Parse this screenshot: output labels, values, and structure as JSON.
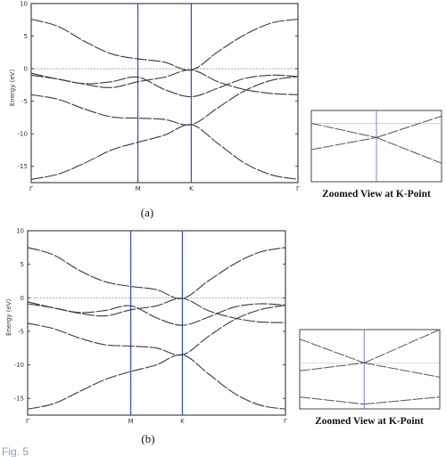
{
  "figure_caption_fragment": "Fig. 5",
  "chart_data": [
    {
      "type": "line",
      "panel_label": "(a)",
      "ylabel": "Energy (eV)",
      "ylim": [
        -17.5,
        10
      ],
      "yticks": [
        10,
        5,
        0,
        -5,
        -10,
        -15
      ],
      "kpath": [
        0,
        1,
        1.5,
        2.5
      ],
      "xtick_labels": [
        "Γ",
        "M",
        "K",
        "Γ"
      ],
      "fermi_level": 0,
      "series": [
        {
          "x": [
            0,
            0.25,
            0.5,
            0.75,
            1.0,
            1.25,
            1.5,
            1.75,
            2.0,
            2.25,
            2.5
          ],
          "values": [
            -17.0,
            -16.2,
            -14.5,
            -12.5,
            -11.3,
            -10.2,
            -8.6,
            -11.5,
            -14.5,
            -16.3,
            -17.0
          ]
        },
        {
          "x": [
            0,
            0.25,
            0.5,
            0.75,
            1.0,
            1.25,
            1.5,
            1.75,
            2.0,
            2.25,
            2.5
          ],
          "values": [
            -4.0,
            -4.7,
            -6.2,
            -7.4,
            -7.6,
            -7.8,
            -8.6,
            -6.0,
            -3.4,
            -1.8,
            -1.2
          ]
        },
        {
          "x": [
            0,
            0.25,
            0.5,
            0.75,
            1.0,
            1.25,
            1.5,
            1.75,
            2.0,
            2.25,
            2.5
          ],
          "values": [
            -1.0,
            -1.6,
            -2.4,
            -2.9,
            -2.0,
            -1.3,
            -0.2,
            -2.0,
            -3.2,
            -3.8,
            -4.0
          ]
        },
        {
          "x": [
            0,
            0.25,
            0.5,
            0.75,
            1.0,
            1.25,
            1.5,
            1.75,
            2.0,
            2.25,
            2.5
          ],
          "values": [
            -0.7,
            -1.6,
            -2.3,
            -2.0,
            -1.3,
            -3.2,
            -4.3,
            -3.0,
            -1.5,
            -1.0,
            -1.2
          ]
        },
        {
          "x": [
            0,
            0.25,
            0.5,
            0.75,
            1.0,
            1.25,
            1.5,
            1.75,
            2.0,
            2.25,
            2.5
          ],
          "values": [
            7.6,
            6.5,
            4.2,
            2.3,
            1.5,
            1.0,
            -0.2,
            2.6,
            5.2,
            7.0,
            7.6
          ]
        }
      ],
      "zoom": {
        "caption": "Zoomed View at K-Point",
        "vline_frac": 0.5,
        "hline_frac": 0.18,
        "lines": [
          {
            "from": [
              0.0,
              0.18
            ],
            "to": [
              0.5,
              0.38
            ]
          },
          {
            "from": [
              0.5,
              0.38
            ],
            "to": [
              1.0,
              0.08
            ]
          },
          {
            "from": [
              0.0,
              0.55
            ],
            "to": [
              0.5,
              0.38
            ]
          },
          {
            "from": [
              0.5,
              0.38
            ],
            "to": [
              1.0,
              0.74
            ]
          }
        ]
      }
    },
    {
      "type": "line",
      "panel_label": "(b)",
      "ylabel": "Energy (eV)",
      "ylim": [
        -17.5,
        10
      ],
      "yticks": [
        10,
        5,
        0,
        -5,
        -10,
        -15
      ],
      "kpath": [
        0,
        1,
        1.5,
        2.5
      ],
      "xtick_labels": [
        "Γ",
        "M",
        "K",
        "Γ"
      ],
      "fermi_level": 0,
      "series": [
        {
          "x": [
            0,
            0.25,
            0.5,
            0.75,
            1.0,
            1.25,
            1.5,
            1.75,
            2.0,
            2.25,
            2.5
          ],
          "values": [
            -16.6,
            -15.8,
            -14.0,
            -12.2,
            -11.0,
            -10.0,
            -8.5,
            -11.3,
            -14.2,
            -16.0,
            -16.6
          ]
        },
        {
          "x": [
            0,
            0.25,
            0.5,
            0.75,
            1.0,
            1.25,
            1.5,
            1.75,
            2.0,
            2.25,
            2.5
          ],
          "values": [
            -3.8,
            -4.6,
            -6.0,
            -7.0,
            -7.2,
            -7.5,
            -8.5,
            -5.8,
            -3.3,
            -1.8,
            -1.1
          ]
        },
        {
          "x": [
            0,
            0.25,
            0.5,
            0.75,
            1.0,
            1.25,
            1.5,
            1.75,
            2.0,
            2.25,
            2.5
          ],
          "values": [
            -0.9,
            -1.5,
            -2.3,
            -2.7,
            -1.8,
            -1.2,
            -0.1,
            -1.9,
            -3.0,
            -3.6,
            -3.7
          ]
        },
        {
          "x": [
            0,
            0.25,
            0.5,
            0.75,
            1.0,
            1.25,
            1.5,
            1.75,
            2.0,
            2.25,
            2.5
          ],
          "values": [
            -0.6,
            -1.5,
            -2.2,
            -1.9,
            -1.2,
            -3.0,
            -4.1,
            -2.9,
            -1.4,
            -0.9,
            -1.1
          ]
        },
        {
          "x": [
            0,
            0.25,
            0.5,
            0.75,
            1.0,
            1.25,
            1.5,
            1.75,
            2.0,
            2.25,
            2.5
          ],
          "values": [
            7.5,
            6.4,
            4.1,
            2.4,
            1.7,
            1.2,
            -0.1,
            2.5,
            5.0,
            6.8,
            7.5
          ]
        }
      ],
      "zoom": {
        "caption": "Zoomed View at K-Point",
        "vline_frac": 0.46,
        "hline_frac": 0.42,
        "lines": [
          {
            "from": [
              0.0,
              0.12
            ],
            "to": [
              0.46,
              0.42
            ]
          },
          {
            "from": [
              0.46,
              0.42
            ],
            "to": [
              1.0,
              0.0
            ]
          },
          {
            "from": [
              0.0,
              0.52
            ],
            "to": [
              0.46,
              0.42
            ]
          },
          {
            "from": [
              0.46,
              0.42
            ],
            "to": [
              1.0,
              0.6
            ]
          },
          {
            "from": [
              0.0,
              0.85
            ],
            "to": [
              0.46,
              0.94
            ]
          },
          {
            "from": [
              0.46,
              0.94
            ],
            "to": [
              1.0,
              0.85
            ]
          }
        ]
      }
    }
  ]
}
